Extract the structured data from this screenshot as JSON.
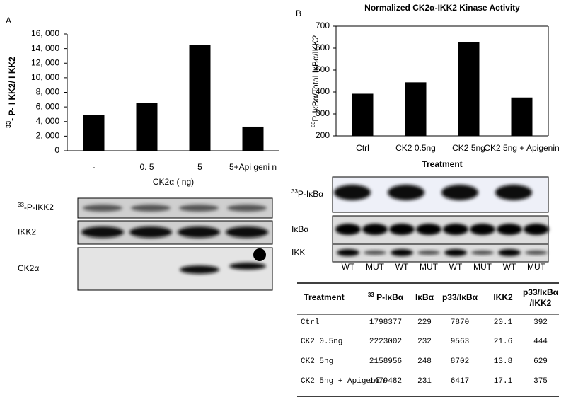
{
  "chart_data": [
    {
      "type": "bar",
      "panel": "A",
      "ylabel": {
        "sup": "33",
        "text": "- P- I KK2/ I KK2"
      },
      "xlabel": "CK2α ( ng)",
      "categories": [
        "-",
        "0. 5",
        "5",
        "5+Api geni n"
      ],
      "values": [
        4900,
        6500,
        14500,
        3300
      ],
      "color": "#000000",
      "ylim": [
        0,
        16000
      ],
      "yticks": [
        0,
        {
          "value": 2000,
          "label": "2, 000"
        },
        {
          "value": 4000,
          "label": "4, 000"
        },
        {
          "value": 6000,
          "label": "6, 000"
        },
        {
          "value": 8000,
          "label": "8, 000"
        },
        {
          "value": 10000,
          "label": "10, 000"
        },
        {
          "value": 12000,
          "label": "12, 000"
        },
        {
          "value": 14000,
          "label": "14, 000"
        },
        {
          "value": 16000,
          "label": "16, 000"
        }
      ],
      "frame": false
    },
    {
      "type": "bar",
      "panel": "B",
      "title": "Normalized CK2α-IKK2 Kinase Activity",
      "ylabel": {
        "sup": "33",
        "text": "P-IκBα/Total IκBα/IKK2"
      },
      "xlabel": "Treatment",
      "categories": [
        "Ctrl",
        "CK2 0.5ng",
        "CK2 5ng",
        "CK2 5ng + Apigenin"
      ],
      "values": [
        392,
        444,
        629,
        375
      ],
      "color": "#000000",
      "ylim": [
        200,
        700
      ],
      "yticks": [
        200,
        300,
        400,
        500,
        600,
        700
      ],
      "frame": true
    }
  ],
  "blots_a": [
    {
      "sup": "33",
      "text": "-P-IKK2"
    },
    {
      "text": "IKK2"
    },
    {
      "text": "CK2α"
    }
  ],
  "blots_b": {
    "rows": [
      {
        "sup": "33",
        "text": "P-IκBα"
      },
      {
        "text": "IκBα"
      },
      {
        "text": "IKK"
      }
    ],
    "lanes": [
      "WT",
      "MUT",
      "WT",
      "MUT",
      "WT",
      "MUT",
      "WT",
      "MUT"
    ]
  },
  "table": {
    "header": [
      "Treatment",
      {
        "sup": "33",
        "text": " P-IκBα"
      },
      "IκBα",
      "p33/IκBα",
      "IKK2",
      [
        "p33/IκBα",
        "/IKK2"
      ]
    ],
    "rows": [
      [
        "Ctrl",
        1798377,
        229,
        7870,
        20.1,
        392
      ],
      [
        "CK2 0.5ng",
        2223002,
        232,
        9563,
        21.6,
        444
      ],
      [
        "CK2 5ng",
        2158956,
        248,
        8702,
        13.8,
        629
      ],
      [
        "CK2 5ng + Apigenin",
        1479482,
        231,
        6417,
        17.1,
        375
      ]
    ]
  }
}
